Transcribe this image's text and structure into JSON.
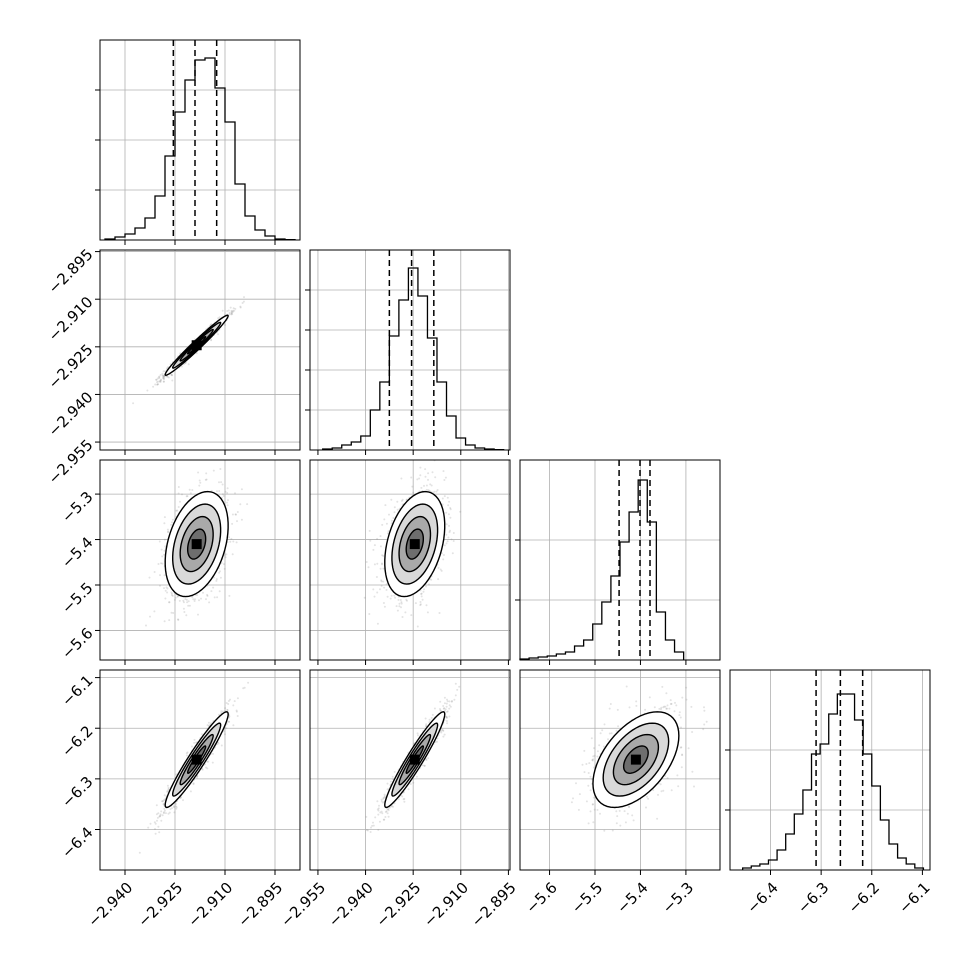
{
  "chart_data": {
    "type": "corner",
    "description_free": true,
    "parameters": [
      {
        "name": "",
        "range": [
          -2.9475,
          -2.8875
        ],
        "ticks": [
          -2.94,
          -2.925,
          -2.91,
          -2.895
        ],
        "tick_labels": [
          "−2.940",
          "−2.925",
          "−2.910",
          "−2.895"
        ],
        "histogram": {
          "bin_edges": [
            -2.946,
            -2.943,
            -2.94,
            -2.937,
            -2.934,
            -2.931,
            -2.928,
            -2.925,
            -2.922,
            -2.919,
            -2.916,
            -2.913,
            -2.91,
            -2.907,
            -2.904,
            -2.901,
            -2.898,
            -2.895,
            -2.892,
            -2.889
          ],
          "counts": [
            0.5,
            1.5,
            3,
            6,
            11,
            22,
            42,
            64,
            80,
            90,
            91,
            76,
            59,
            28,
            12,
            5,
            2,
            0.5,
            0.2
          ],
          "quantiles": [
            -2.9255,
            -2.919,
            -2.9125
          ],
          "ymax": 100,
          "grid_y": [
            25,
            50,
            75
          ]
        }
      },
      {
        "name": "",
        "range": [
          -2.9575,
          -2.8945
        ],
        "ticks": [
          -2.955,
          -2.94,
          -2.925,
          -2.91,
          -2.895
        ],
        "tick_labels": [
          "−2.955",
          "−2.940",
          "−2.925",
          "−2.910",
          "−2.895"
        ],
        "y_ticks": [
          -2.895,
          -2.91,
          -2.925,
          -2.94,
          -2.955
        ],
        "y_tick_labels": [
          "−2.895",
          "−2.910",
          "−2.925",
          "−2.940",
          "−2.955"
        ],
        "histogram": {
          "bin_edges": [
            -2.9535,
            -2.9505,
            -2.9475,
            -2.9445,
            -2.9415,
            -2.9385,
            -2.9355,
            -2.9325,
            -2.9295,
            -2.9265,
            -2.9235,
            -2.9205,
            -2.9175,
            -2.9145,
            -2.9115,
            -2.9085,
            -2.9055,
            -2.9025,
            -2.8995,
            -2.8965
          ],
          "counts": [
            0.5,
            1,
            2.5,
            4,
            7,
            20,
            34,
            57,
            75,
            91,
            77,
            56,
            34,
            17,
            6,
            2.5,
            1,
            0.5,
            0.2
          ],
          "quantiles": [
            -2.9325,
            -2.9255,
            -2.9185
          ],
          "ymax": 100,
          "grid_y": [
            20,
            40,
            60,
            80
          ]
        }
      },
      {
        "name": "",
        "range": [
          -5.665,
          -5.225
        ],
        "ticks": [
          -5.6,
          -5.5,
          -5.4,
          -5.3
        ],
        "tick_labels": [
          "−5.6",
          "−5.5",
          "−5.4",
          "−5.3"
        ],
        "y_tick_labels": [
          "−5.3",
          "−5.4",
          "−5.5",
          "−5.6"
        ],
        "histogram": {
          "bin_edges": [
            -5.665,
            -5.645,
            -5.625,
            -5.605,
            -5.585,
            -5.565,
            -5.545,
            -5.525,
            -5.505,
            -5.485,
            -5.465,
            -5.445,
            -5.425,
            -5.405,
            -5.385,
            -5.365,
            -5.345,
            -5.325,
            -5.305
          ],
          "counts": [
            0.5,
            1,
            1.5,
            2,
            3,
            4,
            7,
            10,
            18,
            29,
            42,
            59,
            74,
            90,
            69,
            24,
            10,
            4
          ],
          "quantiles": [
            -5.447,
            -5.401,
            -5.379
          ],
          "ymax": 100,
          "grid_y": [
            30,
            60
          ]
        }
      },
      {
        "name": "",
        "range": [
          -6.48,
          -6.085
        ],
        "ticks": [
          -6.4,
          -6.3,
          -6.2,
          -6.1
        ],
        "tick_labels": [
          "−6.4",
          "−6.3",
          "−6.2",
          "−6.1"
        ],
        "y_tick_labels": [
          "−6.1",
          "−6.2",
          "−6.3",
          "−6.4"
        ],
        "histogram": {
          "bin_edges": [
            -6.455,
            -6.438,
            -6.421,
            -6.404,
            -6.387,
            -6.37,
            -6.353,
            -6.336,
            -6.319,
            -6.302,
            -6.285,
            -6.268,
            -6.251,
            -6.234,
            -6.217,
            -6.2,
            -6.183,
            -6.166,
            -6.149,
            -6.132,
            -6.115,
            -6.098
          ],
          "counts": [
            1,
            2,
            3,
            5,
            10,
            18,
            28,
            40,
            58,
            63,
            78,
            88,
            88,
            75,
            58,
            42,
            25,
            13,
            6,
            3,
            1
          ],
          "quantiles": [
            -6.31,
            -6.262,
            -6.218
          ],
          "ymax": 100,
          "grid_y": [
            30,
            60
          ]
        }
      }
    ],
    "pairs": [
      {
        "x": 0,
        "y": 1,
        "center": [
          -2.9185,
          -2.9245
        ],
        "rho": 0.98,
        "sd": [
          0.0045,
          0.0045
        ],
        "levels_sd": [
          0.6,
          1.1,
          1.6,
          2.1
        ]
      },
      {
        "x": 0,
        "y": 2,
        "center": [
          -2.9185,
          -5.41
        ],
        "rho": 0.35,
        "sd": [
          0.0045,
          0.055
        ],
        "levels_sd": [
          0.6,
          1.1,
          1.6,
          2.1
        ]
      },
      {
        "x": 1,
        "y": 2,
        "center": [
          -2.9245,
          -5.41
        ],
        "rho": 0.35,
        "sd": [
          0.0045,
          0.055
        ],
        "levels_sd": [
          0.6,
          1.1,
          1.6,
          2.1
        ]
      },
      {
        "x": 0,
        "y": 3,
        "center": [
          -2.9185,
          -6.262
        ],
        "rho": 0.95,
        "sd": [
          0.0045,
          0.045
        ],
        "levels_sd": [
          0.6,
          1.1,
          1.6,
          2.1
        ]
      },
      {
        "x": 1,
        "y": 3,
        "center": [
          -2.9245,
          -6.262
        ],
        "rho": 0.95,
        "sd": [
          0.0045,
          0.045
        ],
        "levels_sd": [
          0.6,
          1.1,
          1.6,
          2.1
        ]
      },
      {
        "x": 2,
        "y": 3,
        "center": [
          -5.41,
          -6.262
        ],
        "rho": 0.5,
        "sd": [
          0.045,
          0.045
        ],
        "levels_sd": [
          0.6,
          1.1,
          1.6,
          2.1
        ]
      }
    ],
    "grid": true,
    "histogram_style": "step",
    "quantile_lines": "dashed",
    "scatter_color": "#808080",
    "contour_color": "#000000",
    "title": "",
    "xlabel": "",
    "ylabel": ""
  }
}
